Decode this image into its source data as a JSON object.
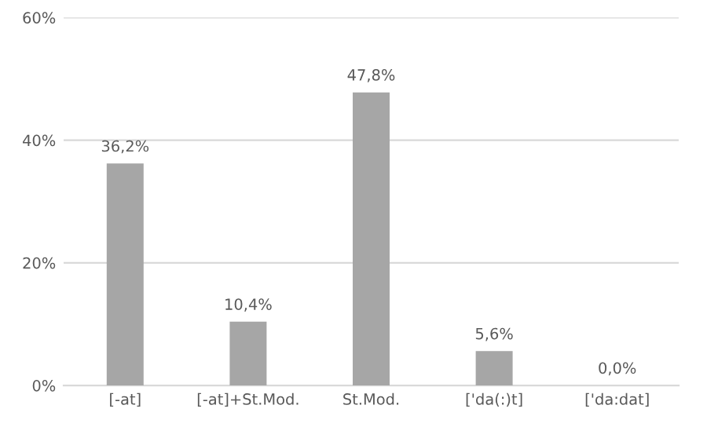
{
  "chart_data": {
    "type": "bar",
    "categories": [
      "[-at]",
      "[-at]+St.Mod.",
      "St.Mod.",
      "['da(:)t]",
      "['da:dat]"
    ],
    "values": [
      36.2,
      10.4,
      47.8,
      5.6,
      0.0
    ],
    "value_labels": [
      "36,2%",
      "10,4%",
      "47,8%",
      "5,6%",
      "0,0%"
    ],
    "color": "#a6a6a6",
    "ylim": [
      0,
      60
    ],
    "yticks": [
      {
        "value": 0,
        "label": "0%"
      },
      {
        "value": 20,
        "label": "20%"
      },
      {
        "value": 40,
        "label": "40%"
      },
      {
        "value": 60,
        "label": "60%"
      }
    ],
    "grid": "y"
  }
}
